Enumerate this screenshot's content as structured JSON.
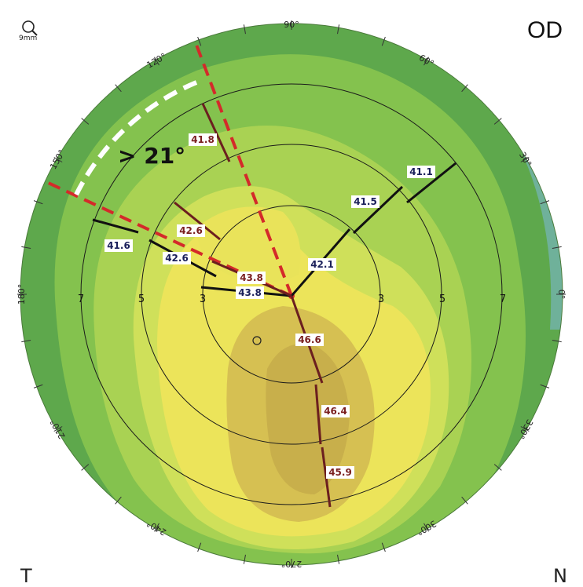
{
  "header": {
    "eye": "OD",
    "zoom_label": "9mm",
    "left_corner": "T",
    "right_corner": "N"
  },
  "colors": {
    "outer_green": "#5aa64a",
    "mid_green": "#8cc850",
    "yellow": "#ede45a",
    "tan": "#cdb450",
    "teal": "#7fb5b0",
    "steep_meridian": "#6b1f1f",
    "flat_meridian": "#111111",
    "red_dash": "#d42a2a",
    "white_dash": "#ffffff"
  },
  "angles": [
    "90°",
    "60°",
    "30°",
    "0°",
    "330°",
    "300°",
    "270°",
    "240°",
    "210°",
    "180°",
    "150°",
    "120°"
  ],
  "ring_labels": [
    "7",
    "5",
    "3",
    "3",
    "5",
    "7"
  ],
  "annotation": "> 21°",
  "steep_values": [
    {
      "value": "43.8",
      "ring": 3
    },
    {
      "value": "42.6",
      "ring": 5
    },
    {
      "value": "41.8",
      "ring": 7
    },
    {
      "value": "46.6",
      "ring": 3
    },
    {
      "value": "46.4",
      "ring": 5
    },
    {
      "value": "45.9",
      "ring": 7
    }
  ],
  "flat_values": [
    {
      "value": "43.8",
      "ring": 3
    },
    {
      "value": "42.6",
      "ring": 5
    },
    {
      "value": "41.6",
      "ring": 7
    },
    {
      "value": "42.1",
      "ring": 3
    },
    {
      "value": "41.5",
      "ring": 5
    },
    {
      "value": "41.1",
      "ring": 7
    }
  ]
}
